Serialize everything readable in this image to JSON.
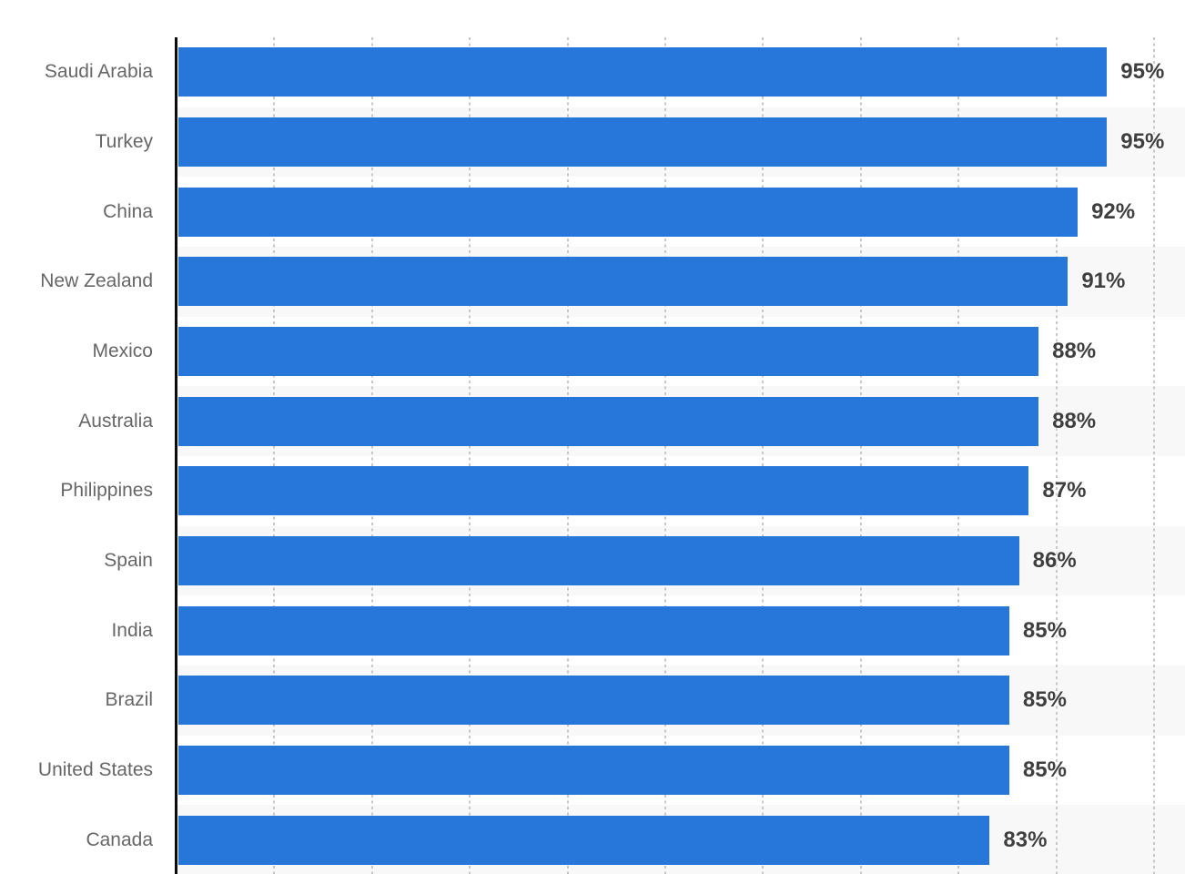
{
  "chart_data": {
    "type": "bar",
    "orientation": "horizontal",
    "title": "",
    "xlabel": "",
    "ylabel": "",
    "categories": [
      "Saudi Arabia",
      "Turkey",
      "China",
      "New Zealand",
      "Mexico",
      "Australia",
      "Philippines",
      "Spain",
      "India",
      "Brazil",
      "United States",
      "Canada"
    ],
    "values": [
      95,
      95,
      92,
      91,
      88,
      88,
      87,
      86,
      85,
      85,
      85,
      83
    ],
    "value_suffix": "%",
    "value_labels": [
      "95%",
      "95%",
      "92%",
      "91%",
      "88%",
      "88%",
      "87%",
      "86%",
      "85%",
      "85%",
      "85%",
      "83%"
    ],
    "xlim": [
      0,
      100
    ],
    "grid_step": 10,
    "grid_on": true,
    "legend": null,
    "colors": {
      "bar": "#2777db",
      "row_stripe": "#f8f8f8",
      "gridline": "#c7c7c7",
      "axis_line": "#0c0c0c",
      "category_label": "#666666",
      "value_label": "#3f3f3f",
      "background": "#ffffff"
    }
  }
}
